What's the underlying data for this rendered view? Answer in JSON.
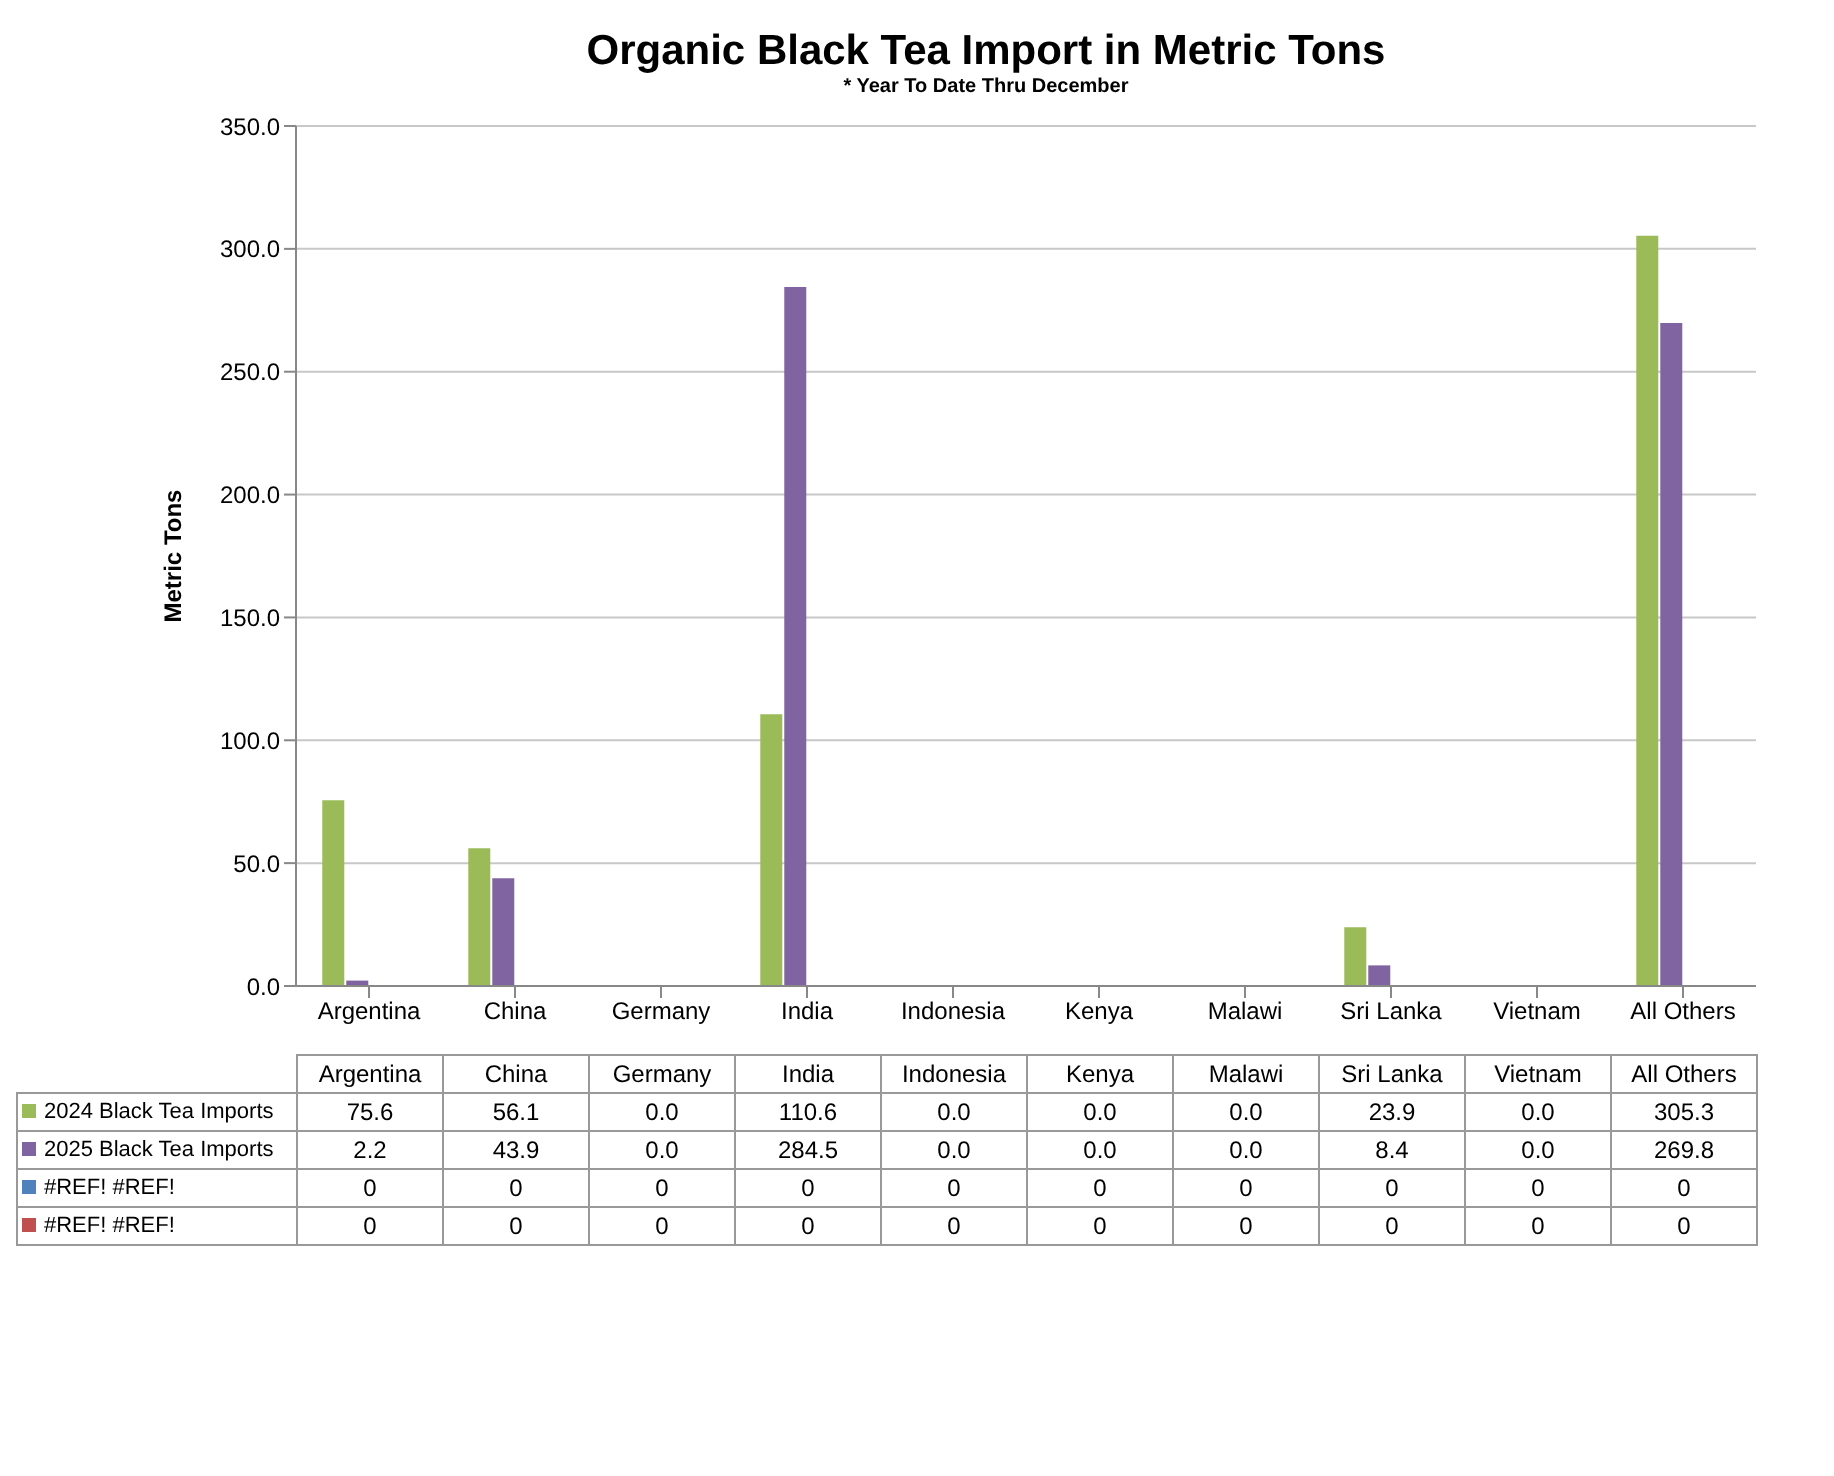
{
  "chart_data": {
    "type": "bar",
    "title": "Organic Black Tea Import in Metric Tons",
    "subtitle": "* Year To Date Thru December",
    "ylabel": "Metric Tons",
    "categories": [
      "Argentina",
      "China",
      "Germany",
      "India",
      "Indonesia",
      "Kenya",
      "Malawi",
      "Sri Lanka",
      "Vietnam",
      "All Others"
    ],
    "series": [
      {
        "name": "2024 Black Tea Imports",
        "color": "#9bbb59",
        "values": [
          75.6,
          56.1,
          0.0,
          110.6,
          0.0,
          0.0,
          0.0,
          23.9,
          0.0,
          305.3
        ],
        "value_labels": [
          "75.6",
          "56.1",
          "0.0",
          "110.6",
          "0.0",
          "0.0",
          "0.0",
          "23.9",
          "0.0",
          "305.3"
        ]
      },
      {
        "name": "2025 Black Tea Imports",
        "color": "#8064a2",
        "values": [
          2.2,
          43.9,
          0.0,
          284.5,
          0.0,
          0.0,
          0.0,
          8.4,
          0.0,
          269.8
        ],
        "value_labels": [
          "2.2",
          "43.9",
          "0.0",
          "284.5",
          "0.0",
          "0.0",
          "0.0",
          "8.4",
          "0.0",
          "269.8"
        ]
      },
      {
        "name": "#REF! #REF!",
        "color": "#4f81bd",
        "values": [
          0,
          0,
          0,
          0,
          0,
          0,
          0,
          0,
          0,
          0
        ],
        "value_labels": [
          "0",
          "0",
          "0",
          "0",
          "0",
          "0",
          "0",
          "0",
          "0",
          "0"
        ]
      },
      {
        "name": "#REF! #REF!",
        "color": "#c0504d",
        "values": [
          0,
          0,
          0,
          0,
          0,
          0,
          0,
          0,
          0,
          0
        ],
        "value_labels": [
          "0",
          "0",
          "0",
          "0",
          "0",
          "0",
          "0",
          "0",
          "0",
          "0"
        ]
      }
    ],
    "ylim": [
      0,
      350
    ],
    "yticks": [
      {
        "value": 0,
        "label": "0.0"
      },
      {
        "value": 50,
        "label": "50.0"
      },
      {
        "value": 100,
        "label": "100.0"
      },
      {
        "value": 150,
        "label": "150.0"
      },
      {
        "value": 200,
        "label": "200.0"
      },
      {
        "value": 250,
        "label": "250.0"
      },
      {
        "value": 300,
        "label": "300.0"
      },
      {
        "value": 350,
        "label": "350.0"
      }
    ],
    "grid": "y",
    "legend": "bottom"
  }
}
